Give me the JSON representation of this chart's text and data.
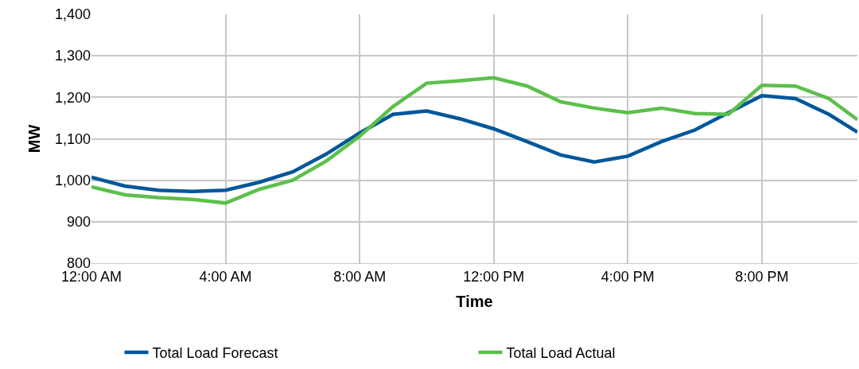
{
  "chart_data": {
    "type": "line",
    "xlabel": "Time",
    "ylabel": "MW",
    "x": [
      0,
      1,
      2,
      3,
      4,
      5,
      6,
      7,
      8,
      9,
      10,
      11,
      12,
      13,
      14,
      15,
      16,
      17,
      18,
      19,
      20,
      21,
      22,
      22.85
    ],
    "series": [
      {
        "name": "Total Load Forecast",
        "color": "#00579b",
        "values": [
          1007,
          986,
          976,
          973,
          976,
          995,
          1020,
          1063,
          1114,
          1159,
          1167,
          1148,
          1124,
          1093,
          1061,
          1044,
          1058,
          1093,
          1121,
          1163,
          1204,
          1197,
          1159,
          1116
        ]
      },
      {
        "name": "Total Load Actual",
        "color": "#5cbf4b",
        "values": [
          984,
          965,
          958,
          954,
          945,
          978,
          1000,
          1046,
          1106,
          1178,
          1234,
          1240,
          1247,
          1227,
          1189,
          1174,
          1163,
          1174,
          1161,
          1159,
          1229,
          1227,
          1197,
          1146
        ]
      }
    ],
    "xlim": [
      0,
      22.85
    ],
    "xticks": [
      {
        "value": 0,
        "label": "12:00 AM"
      },
      {
        "value": 4,
        "label": "4:00 AM"
      },
      {
        "value": 8,
        "label": "8:00 AM"
      },
      {
        "value": 12,
        "label": "12:00 PM"
      },
      {
        "value": 16,
        "label": "4:00 PM"
      },
      {
        "value": 20,
        "label": "8:00 PM"
      }
    ],
    "ylim": [
      800,
      1400
    ],
    "yticks": [
      {
        "value": 800,
        "label": "800"
      },
      {
        "value": 900,
        "label": "900"
      },
      {
        "value": 1000,
        "label": "1,000"
      },
      {
        "value": 1100,
        "label": "1,100"
      },
      {
        "value": 1200,
        "label": "1,200"
      },
      {
        "value": 1300,
        "label": "1,300"
      },
      {
        "value": 1400,
        "label": "1,400"
      }
    ],
    "grid": true,
    "legend": "bottom",
    "marker": "none",
    "line_style": "solid"
  }
}
